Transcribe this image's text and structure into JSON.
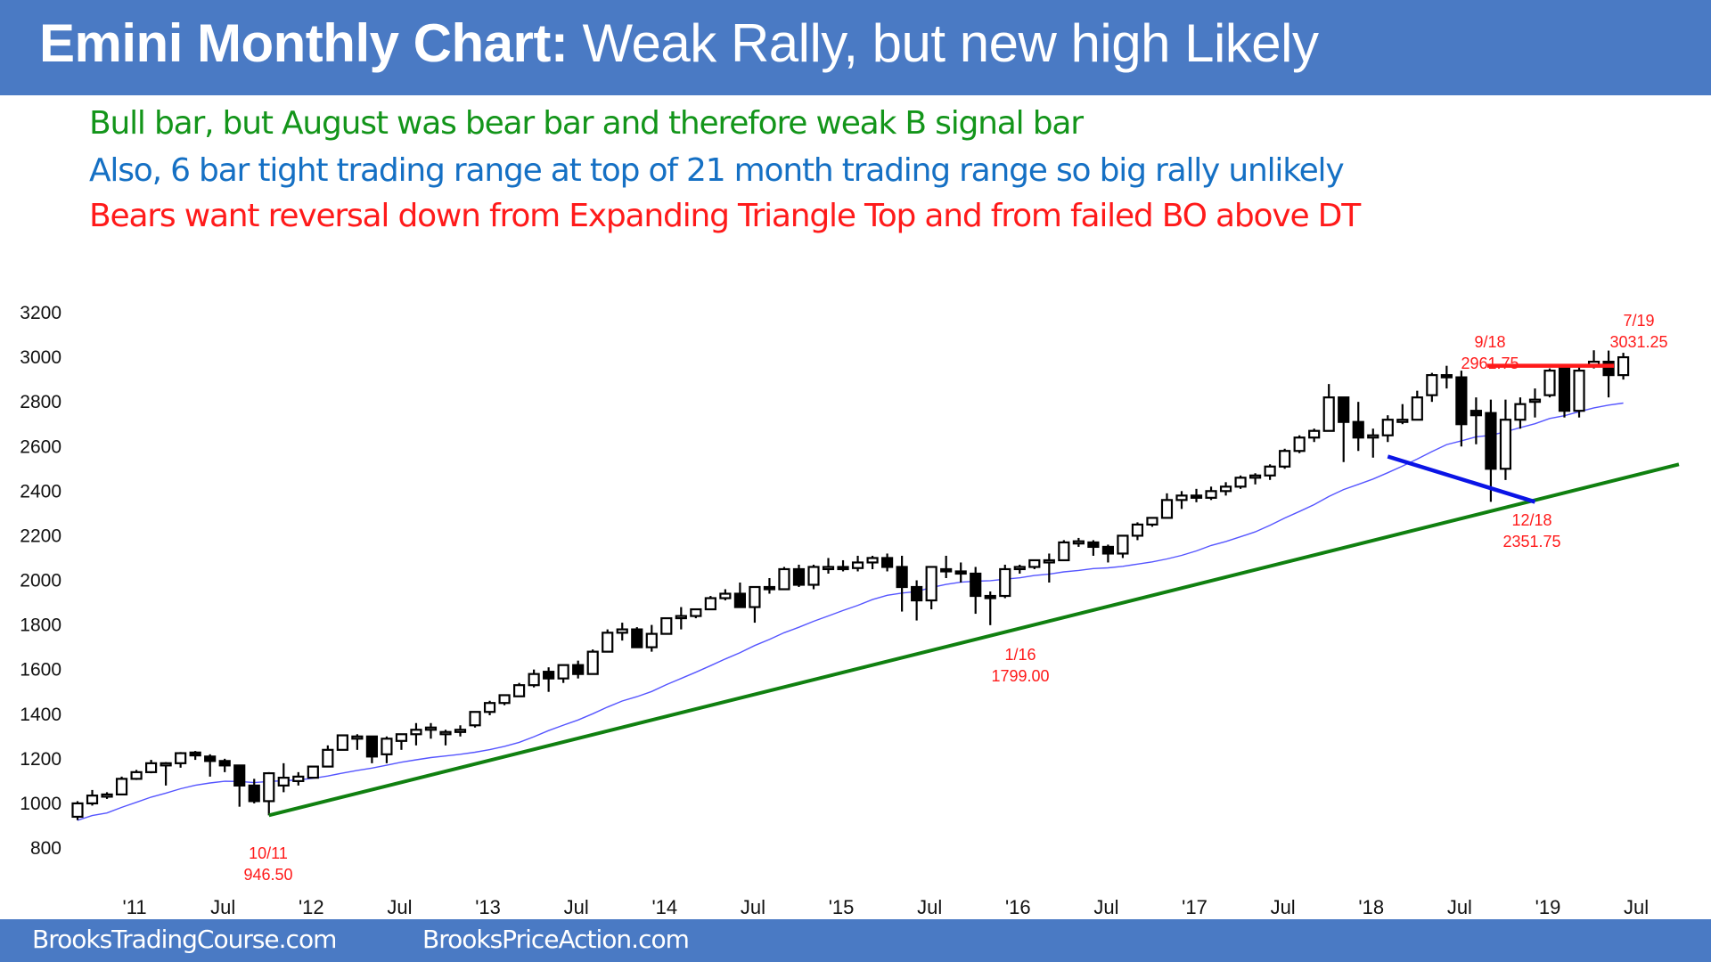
{
  "header": {
    "title_bold": "Emini Monthly Chart:",
    "title_rest": " Weak Rally, but new high Likely",
    "background": "#4a7ac4"
  },
  "notes": [
    {
      "text": "Bull bar, but August was bear bar and therefore weak B signal bar",
      "color": "#13951a"
    },
    {
      "text": "Also, 6 bar tight trading range at top of 21 month trading range so big rally unlikely",
      "color": "#1570c4"
    },
    {
      "text": "Bears want reversal down from Expanding Triangle Top and from failed BO above DT",
      "color": "#ff1a1a"
    }
  ],
  "footer": {
    "left": "BrooksTradingCourse.com",
    "right": "BrooksPriceAction.com"
  },
  "chart_data": {
    "type": "candlestick",
    "title": "Emini Monthly Chart",
    "xlabel": "",
    "ylabel": "",
    "ylim": [
      800,
      3200
    ],
    "yticks": [
      800,
      1000,
      1200,
      1400,
      1600,
      1800,
      2000,
      2200,
      2400,
      2600,
      2800,
      3000,
      3200
    ],
    "xticks": [
      "'11",
      "Jul",
      "'12",
      "Jul",
      "'13",
      "Jul",
      "'14",
      "Jul",
      "'15",
      "Jul",
      "'16",
      "Jul",
      "'17",
      "Jul",
      "'18",
      "Jul",
      "'19",
      "Jul"
    ],
    "grid": false,
    "legend": "none",
    "start_month": "2010-09",
    "ohlc_fields": [
      "open",
      "high",
      "low",
      "close"
    ],
    "candles": [
      [
        940,
        1010,
        925,
        1000
      ],
      [
        1000,
        1060,
        990,
        1035
      ],
      [
        1035,
        1050,
        1020,
        1040
      ],
      [
        1040,
        1120,
        1040,
        1110
      ],
      [
        1110,
        1150,
        1105,
        1140
      ],
      [
        1140,
        1195,
        1135,
        1180
      ],
      [
        1180,
        1185,
        1080,
        1180
      ],
      [
        1180,
        1230,
        1160,
        1225
      ],
      [
        1228,
        1235,
        1195,
        1215
      ],
      [
        1210,
        1220,
        1120,
        1190
      ],
      [
        1190,
        1200,
        1140,
        1170
      ],
      [
        1170,
        1140,
        985,
        1080
      ],
      [
        1080,
        1110,
        1000,
        1010
      ],
      [
        1010,
        1140,
        946.5,
        1135
      ],
      [
        1080,
        1180,
        1050,
        1115
      ],
      [
        1100,
        1140,
        1080,
        1120
      ],
      [
        1115,
        1150,
        1120,
        1165
      ],
      [
        1165,
        1260,
        1165,
        1240
      ],
      [
        1240,
        1290,
        1240,
        1305
      ],
      [
        1300,
        1310,
        1240,
        1300
      ],
      [
        1300,
        1300,
        1180,
        1210
      ],
      [
        1220,
        1300,
        1180,
        1290
      ],
      [
        1280,
        1300,
        1240,
        1310
      ],
      [
        1310,
        1360,
        1260,
        1330
      ],
      [
        1330,
        1360,
        1290,
        1340
      ],
      [
        1320,
        1330,
        1260,
        1320
      ],
      [
        1320,
        1350,
        1300,
        1330
      ],
      [
        1350,
        1400,
        1340,
        1410
      ],
      [
        1410,
        1460,
        1395,
        1450
      ],
      [
        1450,
        1480,
        1440,
        1485
      ],
      [
        1480,
        1540,
        1480,
        1530
      ],
      [
        1530,
        1600,
        1520,
        1580
      ],
      [
        1590,
        1610,
        1500,
        1560
      ],
      [
        1560,
        1620,
        1540,
        1620
      ],
      [
        1620,
        1640,
        1560,
        1580
      ],
      [
        1580,
        1690,
        1580,
        1680
      ],
      [
        1680,
        1780,
        1680,
        1765
      ],
      [
        1765,
        1810,
        1730,
        1780
      ],
      [
        1780,
        1790,
        1730,
        1700
      ],
      [
        1700,
        1800,
        1680,
        1760
      ],
      [
        1760,
        1820,
        1770,
        1830
      ],
      [
        1830,
        1880,
        1780,
        1840
      ],
      [
        1840,
        1870,
        1830,
        1870
      ],
      [
        1870,
        1930,
        1870,
        1920
      ],
      [
        1920,
        1960,
        1910,
        1940
      ],
      [
        1940,
        1990,
        1900,
        1880
      ],
      [
        1880,
        1950,
        1810,
        1970
      ],
      [
        1970,
        2010,
        1940,
        1960
      ],
      [
        1960,
        2060,
        1990,
        2050
      ],
      [
        2050,
        2070,
        1970,
        1980
      ],
      [
        1980,
        2070,
        1960,
        2060
      ],
      [
        2060,
        2100,
        2030,
        2060
      ],
      [
        2060,
        2090,
        2040,
        2050
      ],
      [
        2055,
        2110,
        2040,
        2080
      ],
      [
        2080,
        2110,
        2050,
        2100
      ],
      [
        2100,
        2120,
        2040,
        2060
      ],
      [
        2060,
        2110,
        1860,
        1970
      ],
      [
        1970,
        2000,
        1820,
        1910
      ],
      [
        1910,
        2060,
        1870,
        2060
      ],
      [
        2050,
        2110,
        2010,
        2040
      ],
      [
        2040,
        2080,
        1990,
        2030
      ],
      [
        2030,
        2060,
        1850,
        1930
      ],
      [
        1930,
        1950,
        1799,
        1920
      ],
      [
        1930,
        2070,
        1920,
        2050
      ],
      [
        2050,
        2070,
        2030,
        2060
      ],
      [
        2060,
        2090,
        2050,
        2090
      ],
      [
        2090,
        2120,
        1990,
        2090
      ],
      [
        2090,
        2180,
        2090,
        2170
      ],
      [
        2170,
        2190,
        2150,
        2175
      ],
      [
        2170,
        2180,
        2110,
        2150
      ],
      [
        2150,
        2160,
        2080,
        2120
      ],
      [
        2120,
        2200,
        2100,
        2200
      ],
      [
        2200,
        2260,
        2180,
        2250
      ],
      [
        2250,
        2280,
        2240,
        2280
      ],
      [
        2280,
        2390,
        2280,
        2360
      ],
      [
        2360,
        2400,
        2320,
        2380
      ],
      [
        2380,
        2410,
        2350,
        2370
      ],
      [
        2370,
        2420,
        2360,
        2400
      ],
      [
        2400,
        2440,
        2380,
        2420
      ],
      [
        2420,
        2470,
        2410,
        2460
      ],
      [
        2460,
        2480,
        2430,
        2470
      ],
      [
        2470,
        2520,
        2450,
        2510
      ],
      [
        2510,
        2590,
        2500,
        2580
      ],
      [
        2580,
        2650,
        2570,
        2640
      ],
      [
        2640,
        2680,
        2620,
        2670
      ],
      [
        2670,
        2880,
        2670,
        2820
      ],
      [
        2820,
        2800,
        2530,
        2710
      ],
      [
        2710,
        2800,
        2580,
        2640
      ],
      [
        2640,
        2680,
        2550,
        2650
      ],
      [
        2650,
        2740,
        2620,
        2720
      ],
      [
        2710,
        2790,
        2700,
        2720
      ],
      [
        2720,
        2850,
        2720,
        2820
      ],
      [
        2830,
        2930,
        2800,
        2920
      ],
      [
        2920,
        2961.75,
        2860,
        2910
      ],
      [
        2910,
        2940,
        2600,
        2700
      ],
      [
        2760,
        2820,
        2610,
        2740
      ],
      [
        2750,
        2810,
        2351.75,
        2500
      ],
      [
        2500,
        2810,
        2450,
        2720
      ],
      [
        2720,
        2820,
        2680,
        2790
      ],
      [
        2800,
        2860,
        2730,
        2810
      ],
      [
        2830,
        2950,
        2820,
        2940
      ],
      [
        2950,
        2960,
        2730,
        2760
      ],
      [
        2760,
        2970,
        2730,
        2940
      ],
      [
        2960,
        3031.25,
        2950,
        2980
      ],
      [
        2980,
        3030,
        2820,
        2920
      ],
      [
        2920,
        3020,
        2900,
        3000
      ]
    ],
    "moving_average_20": {
      "color": "#5555ff"
    },
    "trendlines": [
      {
        "name": "bull trend line",
        "color": "#108010",
        "from": [
          "2011-10",
          946.5
        ],
        "to": [
          "2019-09+",
          2520
        ]
      },
      {
        "name": "expanding triangle lower line",
        "color": "#0a14e6",
        "from": [
          "2018-02",
          2555
        ],
        "to": [
          "2018-12",
          2351.75
        ]
      },
      {
        "name": "double top line",
        "color": "#ff1a1a",
        "from": [
          "2018-09",
          2961.75
        ],
        "to": [
          "2019-05",
          2961.75
        ]
      }
    ],
    "annotations": [
      {
        "label": "10/11",
        "value": "946.50",
        "color": "#ff1a1a"
      },
      {
        "label": "1/16",
        "value": "1799.00",
        "color": "#ff1a1a"
      },
      {
        "label": "12/18",
        "value": "2351.75",
        "color": "#ff1a1a"
      },
      {
        "label": "9/18",
        "value": "2961.75",
        "color": "#ff1a1a"
      },
      {
        "label": "7/19",
        "value": "3031.25",
        "color": "#ff1a1a"
      }
    ]
  }
}
